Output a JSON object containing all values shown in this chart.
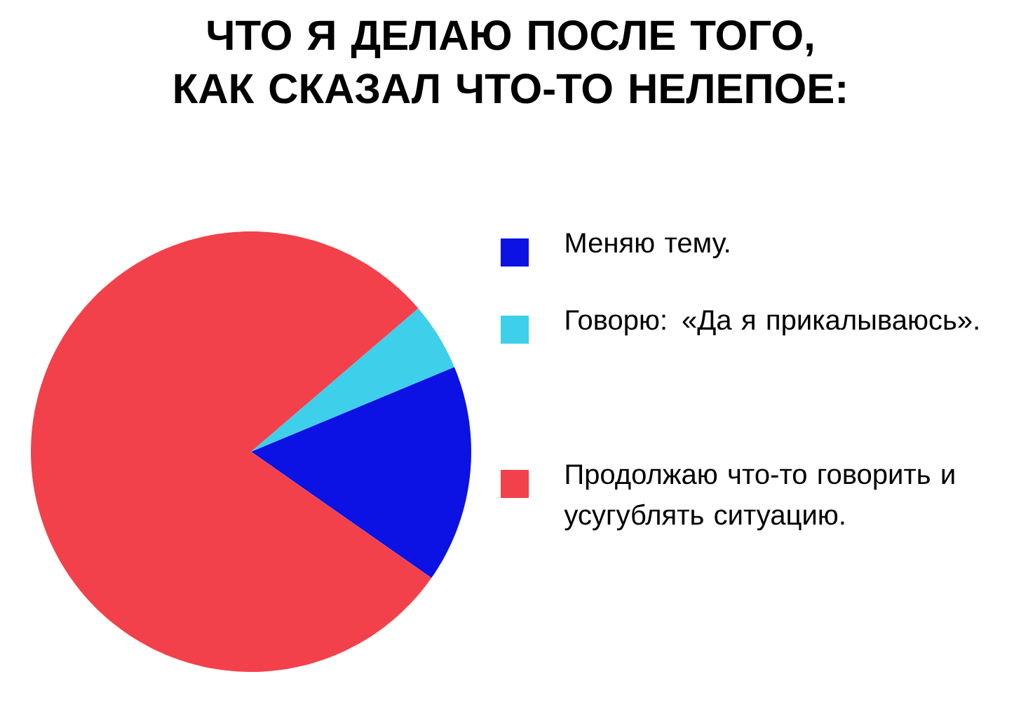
{
  "chart_data": {
    "type": "pie",
    "title": "ЧТО Я ДЕЛАЮ ПОСЛЕ ТОГО, КАК СКАЗАЛ ЧТО-ТО НЕЛЕПОЕ:",
    "categories": [
      "Меняю тему.",
      "Говорю: «Да я прикалываюсь».",
      "Продолжаю что-то говорить и усугублять ситуацию."
    ],
    "values": [
      16,
      5,
      79
    ],
    "colors": [
      "#0b12e3",
      "#3ecfea",
      "#f2414a"
    ],
    "legend": "right"
  }
}
